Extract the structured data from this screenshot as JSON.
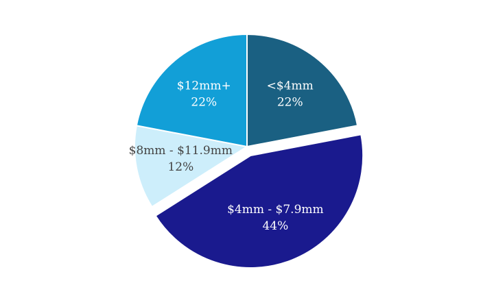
{
  "chart_data": {
    "type": "pie",
    "categories": [
      "<$4mm",
      "$4mm - $7.9mm",
      "$8mm - $11.9mm",
      "$12mm+"
    ],
    "values": [
      22,
      44,
      12,
      22
    ],
    "value_labels": [
      "22%",
      "44%",
      "12%",
      "22%"
    ],
    "colors": [
      "#1a6082",
      "#1a1a8e",
      "#cdeefb",
      "#129fd7"
    ],
    "explode": [
      false,
      true,
      false,
      false
    ]
  }
}
